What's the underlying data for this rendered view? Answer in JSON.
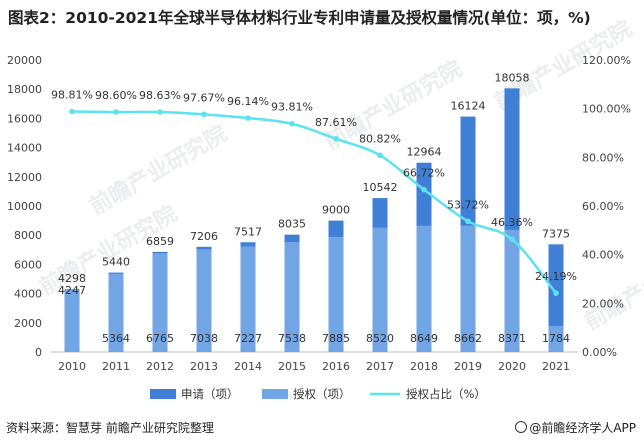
{
  "title": "图表2：2010-2021年全球半导体材料行业专利申请量及授权量情况(单位：项，%)",
  "source": "资料来源：智慧芽 前瞻产业研究院整理",
  "brand": "@前瞻经济学人APP",
  "watermark": "前瞻产业研究院",
  "colors": {
    "application": "#3f7fd6",
    "grant": "#72a5e5",
    "ratio": "#5ae3f0"
  },
  "chart_data": {
    "type": "bar",
    "categories": [
      "2010",
      "2011",
      "2012",
      "2013",
      "2014",
      "2015",
      "2016",
      "2017",
      "2018",
      "2019",
      "2020",
      "2021"
    ],
    "series": [
      {
        "name": "申请（项）",
        "type": "bar",
        "axis": "left",
        "values": [
          4298,
          5440,
          6859,
          7206,
          7517,
          8035,
          9000,
          10542,
          12964,
          16124,
          18058,
          7375
        ]
      },
      {
        "name": "授权（项）",
        "type": "bar",
        "axis": "left",
        "values": [
          4247,
          5364,
          6765,
          7038,
          7227,
          7538,
          7885,
          8520,
          8649,
          8662,
          8371,
          1784
        ]
      },
      {
        "name": "授权占比（%）",
        "type": "line",
        "axis": "right",
        "values": [
          98.81,
          98.6,
          98.63,
          97.67,
          96.14,
          93.81,
          87.61,
          80.82,
          66.72,
          53.72,
          46.36,
          24.19
        ],
        "labels": [
          "98.81%",
          "98.60%",
          "98.63%",
          "97.67%",
          "96.14%",
          "93.81%",
          "87.61%",
          "80.82%",
          "66.72%",
          "53.72%",
          "46.36%",
          "24.19%"
        ]
      }
    ],
    "left_axis": {
      "min": 0,
      "max": 20000,
      "step": 2000,
      "ticks": [
        "0",
        "2000",
        "4000",
        "6000",
        "8000",
        "10000",
        "12000",
        "14000",
        "16000",
        "18000",
        "20000"
      ]
    },
    "right_axis": {
      "min": 0,
      "max": 120,
      "step": 20,
      "ticks": [
        "0.00%",
        "20.00%",
        "40.00%",
        "60.00%",
        "80.00%",
        "100.00%",
        "120.00%"
      ]
    },
    "grid": false,
    "legend_position": "bottom"
  }
}
